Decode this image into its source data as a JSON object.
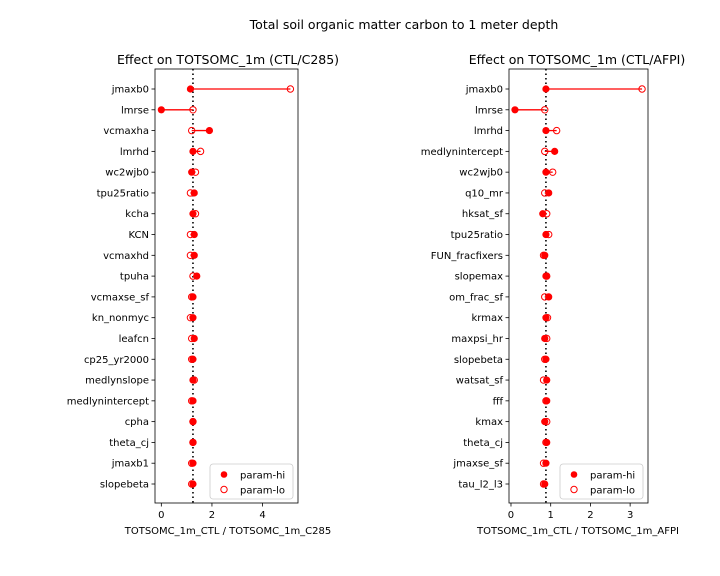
{
  "suptitle": "Total soil organic matter carbon to 1 meter depth",
  "colors": {
    "marker": "#ff0000",
    "line": "#ff0000",
    "ref": "#000000"
  },
  "chart_data": [
    {
      "type": "dot-range",
      "title": "Effect on TOTSOMC_1m (CTL/C285)",
      "xlabel": "TOTSOMC_1m_CTL / TOTSOMC_1m_C285",
      "xlim": [
        -0.25,
        5.4
      ],
      "xticks": [
        0,
        2,
        4
      ],
      "ref_line": 1.25,
      "legend": {
        "position": "lower-right",
        "entries": [
          "param-hi",
          "param-lo"
        ]
      },
      "series": [
        {
          "name": "param-hi",
          "marker": "filled-circle",
          "values": [
            1.15,
            0.0,
            1.9,
            1.25,
            1.2,
            1.3,
            1.25,
            1.3,
            1.3,
            1.4,
            1.25,
            1.25,
            1.3,
            1.25,
            1.25,
            1.25,
            1.25,
            1.25,
            1.25,
            1.25
          ]
        },
        {
          "name": "param-lo",
          "marker": "open-circle",
          "values": [
            5.1,
            1.25,
            1.2,
            1.55,
            1.35,
            1.15,
            1.35,
            1.15,
            1.15,
            1.25,
            1.2,
            1.15,
            1.2,
            1.2,
            1.3,
            1.2,
            1.25,
            1.25,
            1.2,
            1.2
          ]
        }
      ],
      "categories": [
        "jmaxb0",
        "lmrse",
        "vcmaxha",
        "lmrhd",
        "wc2wjb0",
        "tpu25ratio",
        "kcha",
        "KCN",
        "vcmaxhd",
        "tpuha",
        "vcmaxse_sf",
        "kn_nonmyc",
        "leafcn",
        "cp25_yr2000",
        "medlynslope",
        "medlynintercept",
        "cpha",
        "theta_cj",
        "jmaxb1",
        "slopebeta"
      ]
    },
    {
      "type": "dot-range",
      "title": "Effect on TOTSOMC_1m (CTL/AFPI)",
      "xlabel": "TOTSOMC_1m_CTL / TOTSOMC_1m_AFPI",
      "xlim": [
        -0.05,
        3.45
      ],
      "xticks": [
        0,
        1,
        2,
        3
      ],
      "ref_line": 0.88,
      "legend": {
        "position": "lower-right",
        "entries": [
          "param-hi",
          "param-lo"
        ]
      },
      "series": [
        {
          "name": "param-hi",
          "marker": "filled-circle",
          "values": [
            0.88,
            0.1,
            0.88,
            1.1,
            0.88,
            0.95,
            0.8,
            0.88,
            0.85,
            0.88,
            0.95,
            0.88,
            0.85,
            0.88,
            0.9,
            0.9,
            0.85,
            0.9,
            0.88,
            0.85
          ]
        },
        {
          "name": "param-lo",
          "marker": "open-circle",
          "values": [
            3.3,
            0.85,
            1.15,
            0.85,
            1.05,
            0.85,
            0.9,
            0.95,
            0.82,
            0.9,
            0.85,
            0.92,
            0.9,
            0.85,
            0.82,
            0.88,
            0.9,
            0.88,
            0.82,
            0.82
          ]
        }
      ],
      "categories": [
        "jmaxb0",
        "lmrse",
        "lmrhd",
        "medlynintercept",
        "wc2wjb0",
        "q10_mr",
        "hksat_sf",
        "tpu25ratio",
        "FUN_fracfixers",
        "slopemax",
        "om_frac_sf",
        "krmax",
        "maxpsi_hr",
        "slopebeta",
        "watsat_sf",
        "fff",
        "kmax",
        "theta_cj",
        "jmaxse_sf",
        "tau_l2_l3"
      ]
    }
  ]
}
